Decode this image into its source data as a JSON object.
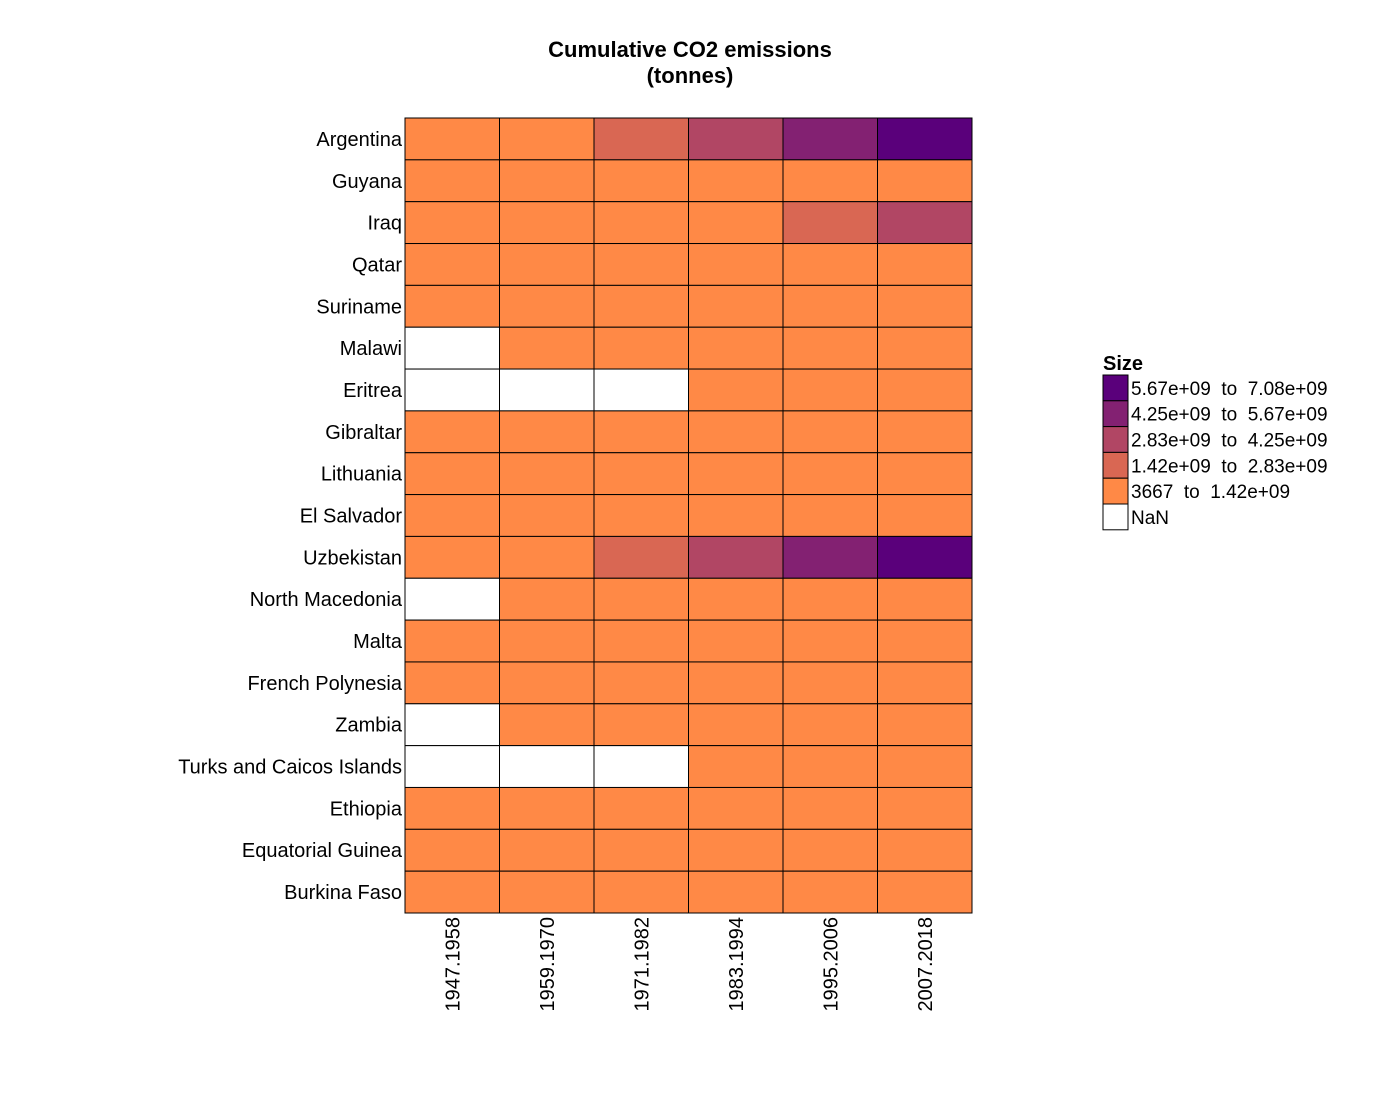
{
  "chart_data": {
    "type": "heatmap",
    "title": "Cumulative CO2 emissions",
    "subtitle": "(tonnes)",
    "columns": [
      "1947.1958",
      "1959.1970",
      "1971.1982",
      "1983.1994",
      "1995.2006",
      "2007.2018"
    ],
    "rows": [
      "Argentina",
      "Guyana",
      "Iraq",
      "Qatar",
      "Suriname",
      "Malawi",
      "Eritrea",
      "Gibraltar",
      "Lithuania",
      "El Salvador",
      "Uzbekistan",
      "North Macedonia",
      "Malta",
      "French Polynesia",
      "Zambia",
      "Turks and Caicos Islands",
      "Ethiopia",
      "Equatorial Guinea",
      "Burkina Faso"
    ],
    "bin_indices": [
      [
        0,
        0,
        1,
        2,
        3,
        4
      ],
      [
        0,
        0,
        0,
        0,
        0,
        0
      ],
      [
        0,
        0,
        0,
        0,
        1,
        2
      ],
      [
        0,
        0,
        0,
        0,
        0,
        0
      ],
      [
        0,
        0,
        0,
        0,
        0,
        0
      ],
      [
        -1,
        0,
        0,
        0,
        0,
        0
      ],
      [
        -1,
        -1,
        -1,
        0,
        0,
        0
      ],
      [
        0,
        0,
        0,
        0,
        0,
        0
      ],
      [
        0,
        0,
        0,
        0,
        0,
        0
      ],
      [
        0,
        0,
        0,
        0,
        0,
        0
      ],
      [
        0,
        0,
        1,
        2,
        3,
        4
      ],
      [
        -1,
        0,
        0,
        0,
        0,
        0
      ],
      [
        0,
        0,
        0,
        0,
        0,
        0
      ],
      [
        0,
        0,
        0,
        0,
        0,
        0
      ],
      [
        -1,
        0,
        0,
        0,
        0,
        0
      ],
      [
        -1,
        -1,
        -1,
        0,
        0,
        0
      ],
      [
        0,
        0,
        0,
        0,
        0,
        0
      ],
      [
        0,
        0,
        0,
        0,
        0,
        0
      ],
      [
        0,
        0,
        0,
        0,
        0,
        0
      ]
    ],
    "bins": [
      {
        "lo": "3667",
        "hi": "1.42e+09",
        "color": "#FF8946"
      },
      {
        "lo": "1.42e+09",
        "hi": "2.83e+09",
        "color": "#D96753"
      },
      {
        "lo": "2.83e+09",
        "hi": "4.25e+09",
        "color": "#B14664"
      },
      {
        "lo": "4.25e+09",
        "hi": "5.67e+09",
        "color": "#832172"
      },
      {
        "lo": "5.67e+09",
        "hi": "7.08e+09",
        "color": "#5A007B"
      }
    ],
    "nan": {
      "label": "NaN",
      "color": "#FFFFFF"
    },
    "legend": {
      "title": "Size",
      "position": "right",
      "entries": [
        {
          "bin": 4,
          "label": "5.67e+09  to  7.08e+09"
        },
        {
          "bin": 3,
          "label": "4.25e+09  to  5.67e+09"
        },
        {
          "bin": 2,
          "label": "2.83e+09  to  4.25e+09"
        },
        {
          "bin": 1,
          "label": "1.42e+09  to  2.83e+09"
        },
        {
          "bin": 0,
          "label": "3667  to  1.42e+09"
        },
        {
          "bin": -1,
          "label": "NaN"
        }
      ]
    }
  }
}
